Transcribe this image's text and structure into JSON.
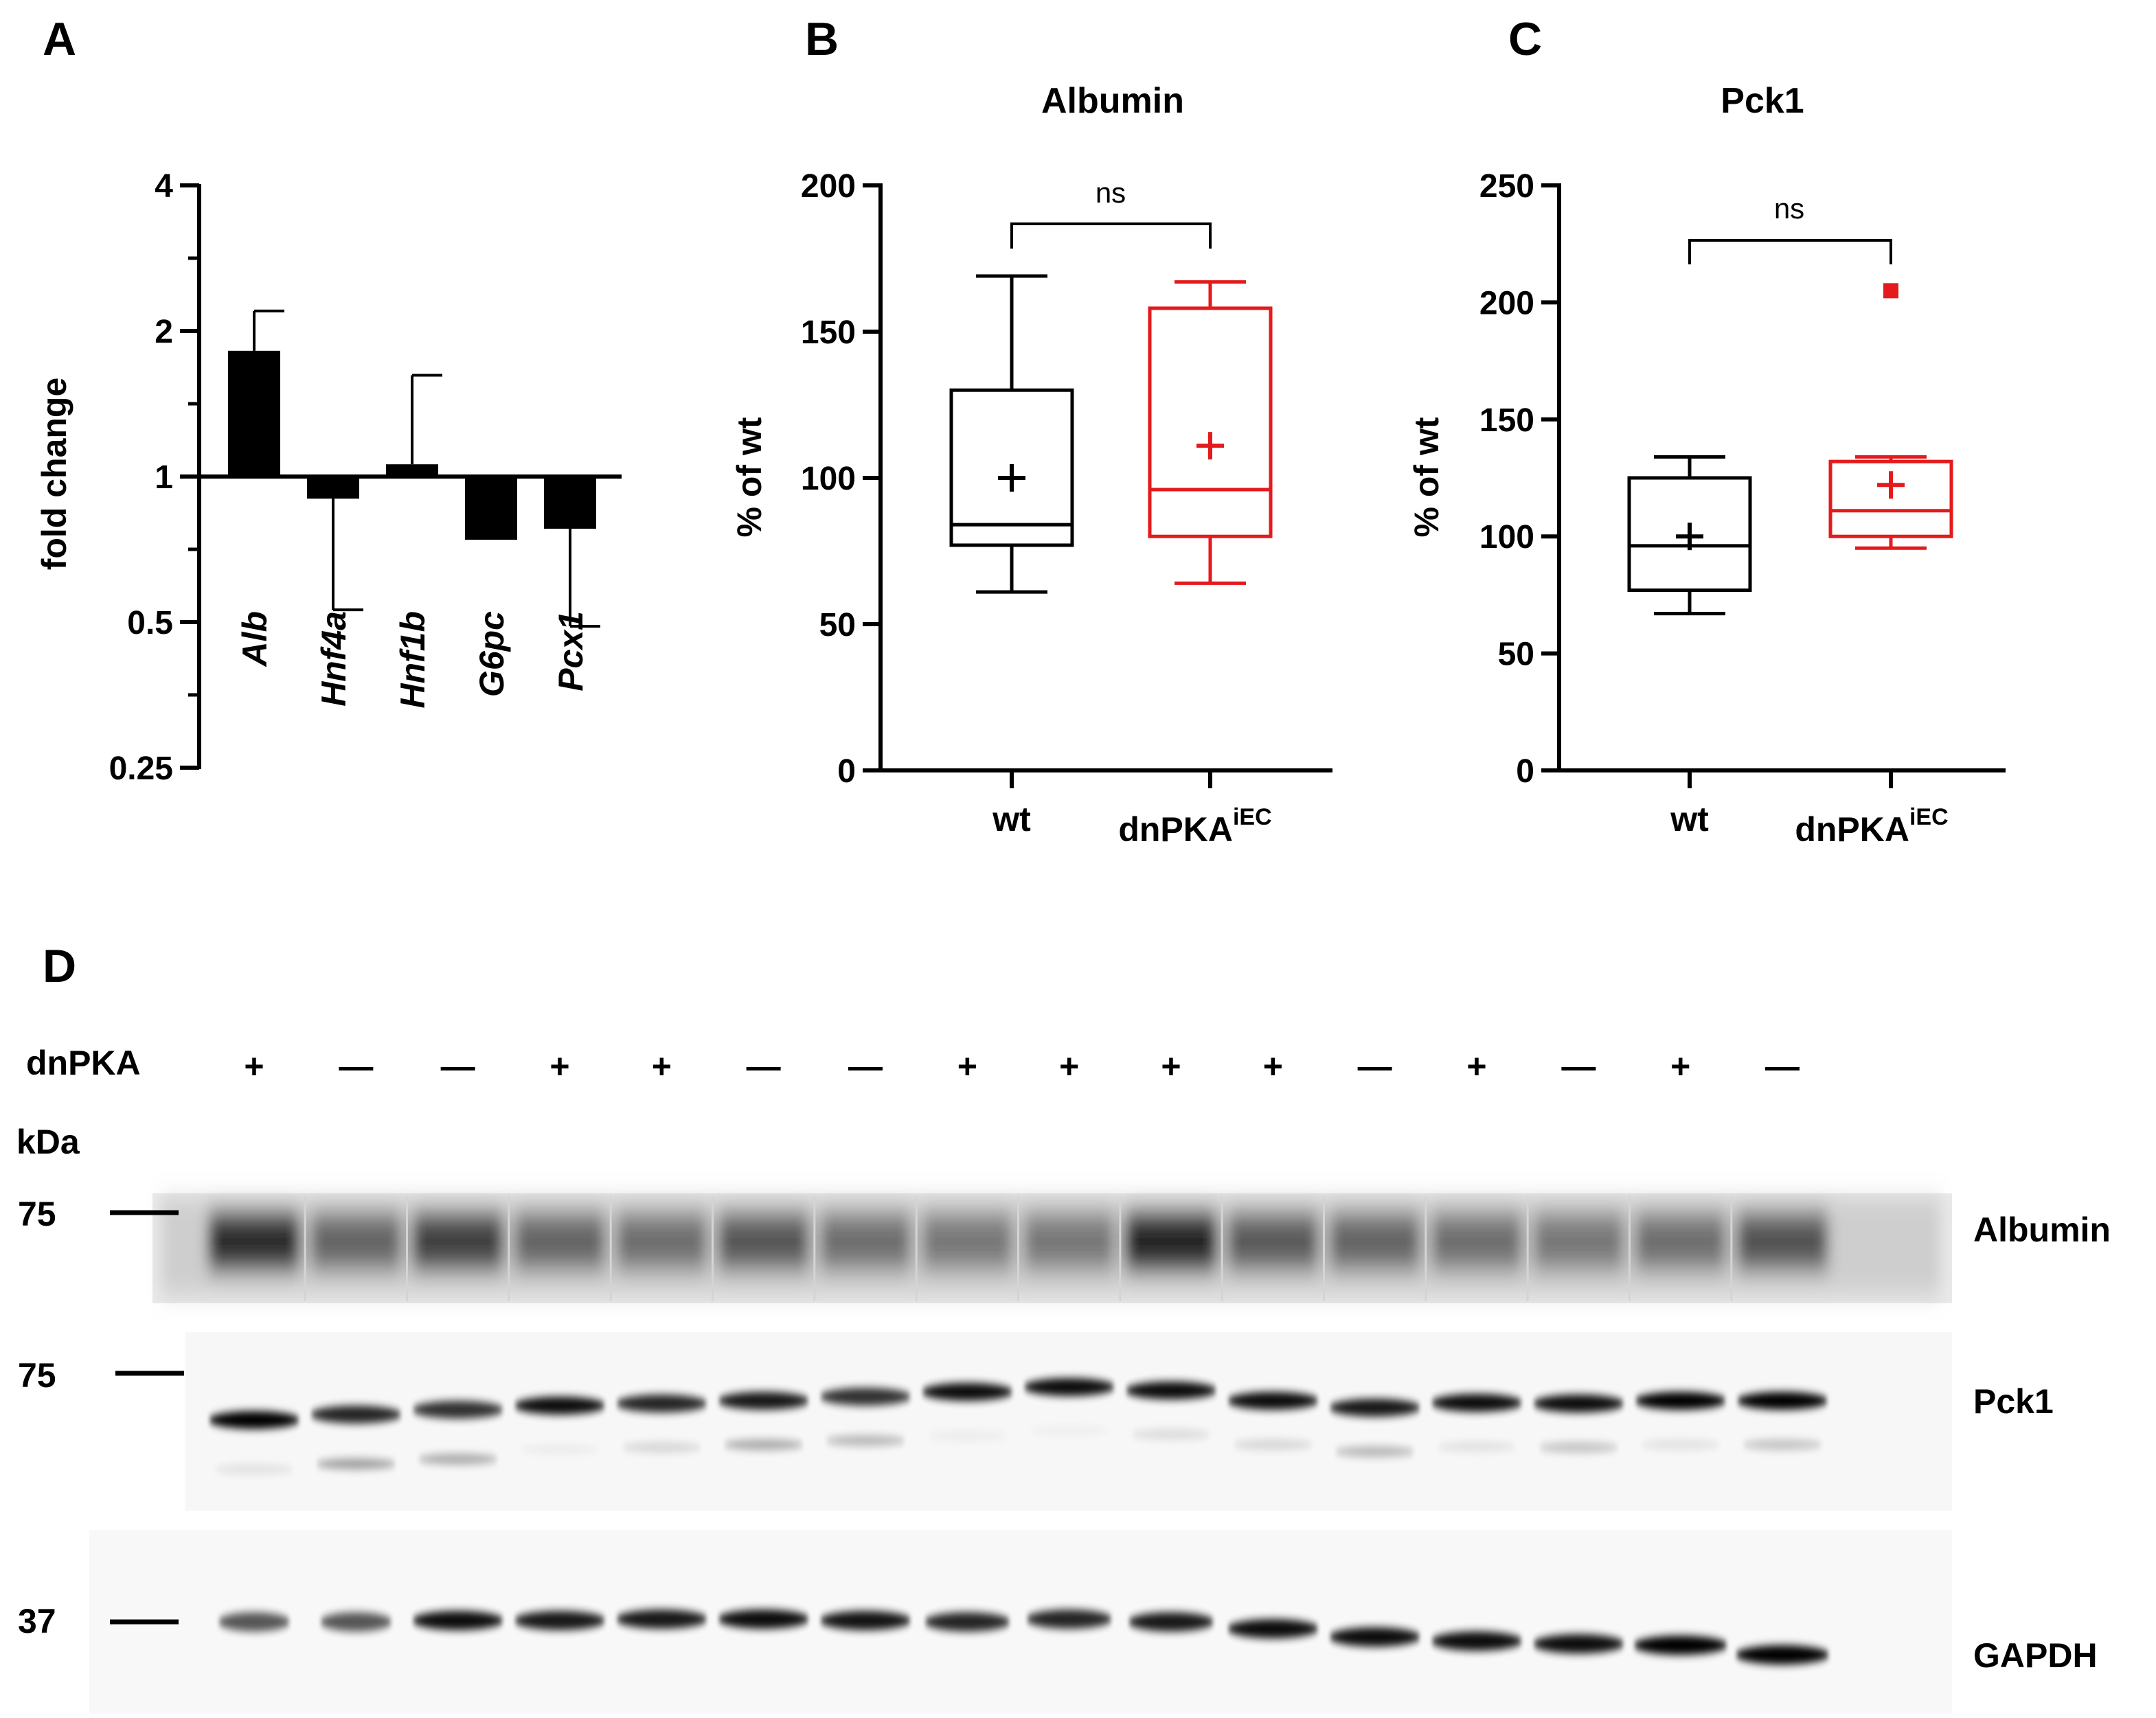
{
  "chart_data": [
    {
      "panel": "A",
      "type": "bar",
      "ylabel": "fold change",
      "yscale": "log2",
      "ylim": [
        0.25,
        4
      ],
      "yticks": [
        "4",
        "2",
        "1",
        "0.5",
        "0.25"
      ],
      "baseline": 1,
      "categories": [
        "Alb",
        "Hnf4a",
        "Hnf1b",
        "G6pc",
        "Pcx1"
      ],
      "values": [
        1.82,
        0.9,
        1.06,
        0.74,
        0.78
      ],
      "error_upper": [
        2.2,
        1.0,
        1.62,
        0.74,
        0.78
      ],
      "error_lower": [
        1.82,
        0.53,
        1.06,
        0.74,
        0.49
      ]
    },
    {
      "panel": "B",
      "type": "box",
      "title": "Albumin",
      "ylabel": "% of wt",
      "ylim": [
        0,
        200
      ],
      "yticks": [
        "0",
        "50",
        "100",
        "150",
        "200"
      ],
      "significance": "ns",
      "groups": [
        {
          "name": "wt",
          "color": "#000000",
          "min": 61,
          "q1": 77,
          "median": 84,
          "q3": 130,
          "max": 169,
          "mean": 100
        },
        {
          "name": "dnPKA",
          "sup": "iEC",
          "color": "#e41a1c",
          "min": 64,
          "q1": 80,
          "median": 96,
          "q3": 158,
          "max": 167,
          "mean": 111
        }
      ]
    },
    {
      "panel": "C",
      "type": "box",
      "title": "Pck1",
      "ylabel": "% of wt",
      "ylim": [
        0,
        250
      ],
      "yticks": [
        "0",
        "50",
        "100",
        "150",
        "200",
        "250"
      ],
      "significance": "ns",
      "groups": [
        {
          "name": "wt",
          "color": "#000000",
          "min": 67,
          "q1": 77,
          "median": 96,
          "q3": 125,
          "max": 134,
          "mean": 100
        },
        {
          "name": "dnPKA",
          "sup": "iEC",
          "color": "#e41a1c",
          "min": 95,
          "q1": 100,
          "median": 111,
          "q3": 132,
          "max": 134,
          "mean": 122,
          "outliers": [
            205
          ]
        }
      ]
    }
  ],
  "panels": {
    "a": "A",
    "b": "B",
    "c": "C",
    "d": "D"
  },
  "blot": {
    "row_label": "dnPKA",
    "unit_label": "kDa",
    "lanes": [
      "+",
      "—",
      "—",
      "+",
      "+",
      "—",
      "—",
      "+",
      "+",
      "+",
      "+",
      "—",
      "+",
      "—",
      "+",
      "—"
    ],
    "markers": [
      "75",
      "75",
      "37"
    ],
    "bands": [
      "Albumin",
      "Pck1",
      "GAPDH"
    ]
  },
  "colors": {
    "wt": "#000000",
    "dnpka": "#e41a1c",
    "bar": "#000000"
  }
}
